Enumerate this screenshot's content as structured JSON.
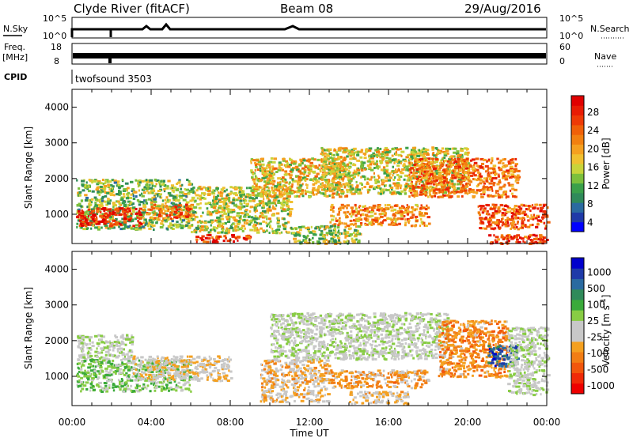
{
  "header": {
    "station": "Clyde River (fitACF)",
    "beam": "Beam 08",
    "date": "29/Aug/2016"
  },
  "aux_panels": {
    "nsky_label": "N.Sky",
    "nsky_ticks": [
      "10^5",
      "10^0"
    ],
    "nsearch_label": "N.Search",
    "nsearch_ticks": [
      "10^5",
      "10^0"
    ],
    "freq_label_1": "Freq.",
    "freq_label_2": "[MHz]",
    "freq_ticks": [
      "18",
      "8"
    ],
    "nave_label": "Nave",
    "nave_ticks": [
      "60",
      "0"
    ],
    "cpid_label": "CPID",
    "cpid_value": "twofsound 3503"
  },
  "chart_data": [
    {
      "type": "heatmap",
      "panel": "power",
      "ylabel": "Slant Range [km]",
      "xlabel": "",
      "ylim": [
        180,
        4500
      ],
      "xlim_hours": [
        0,
        24
      ],
      "x_ticks": [
        "00:00",
        "04:00",
        "08:00",
        "12:00",
        "16:00",
        "20:00",
        "00:00"
      ],
      "y_ticks": [
        1000,
        2000,
        3000,
        4000
      ],
      "colorbar": {
        "label": "Power [dB]",
        "ticks": [
          "28",
          "24",
          "20",
          "16",
          "12",
          "8",
          "4"
        ],
        "range": [
          0,
          30
        ],
        "colors": [
          "#0000ff",
          "#1f3aa8",
          "#2a6aa0",
          "#2f8a5a",
          "#3aa04a",
          "#7cc03c",
          "#c8d43a",
          "#f0c030",
          "#f5a020",
          "#f28010",
          "#f06008",
          "#ee3a06",
          "#e81c04",
          "#e00000"
        ]
      },
      "echo_regions": [
        {
          "t0": 0.2,
          "t1": 6.0,
          "r0": 600,
          "r1": 2000,
          "power": 12
        },
        {
          "t0": 0.2,
          "t1": 3.5,
          "r0": 700,
          "r1": 1200,
          "power": 27
        },
        {
          "t0": 3.5,
          "t1": 6.0,
          "r0": 900,
          "r1": 1300,
          "power": 22
        },
        {
          "t0": 6.0,
          "t1": 11.0,
          "r0": 500,
          "r1": 1800,
          "power": 14
        },
        {
          "t0": 6.2,
          "t1": 9.0,
          "r0": 250,
          "r1": 450,
          "power": 25
        },
        {
          "t0": 9.0,
          "t1": 14.0,
          "r0": 1500,
          "r1": 2600,
          "power": 16
        },
        {
          "t0": 12.5,
          "t1": 20.0,
          "r0": 1600,
          "r1": 2900,
          "power": 15
        },
        {
          "t0": 13.0,
          "t1": 18.0,
          "r0": 700,
          "r1": 1300,
          "power": 20
        },
        {
          "t0": 17.0,
          "t1": 22.5,
          "r0": 1500,
          "r1": 2600,
          "power": 21
        },
        {
          "t0": 20.5,
          "t1": 24.0,
          "r0": 600,
          "r1": 1300,
          "power": 23
        },
        {
          "t0": 11.0,
          "t1": 14.5,
          "r0": 200,
          "r1": 700,
          "power": 13
        },
        {
          "t0": 21.0,
          "t1": 24.0,
          "r0": 200,
          "r1": 450,
          "power": 25
        }
      ]
    },
    {
      "type": "heatmap",
      "panel": "velocity",
      "ylabel": "Slant Range [km]",
      "xlabel": "Time UT",
      "ylim": [
        180,
        4500
      ],
      "xlim_hours": [
        0,
        24
      ],
      "x_ticks": [
        "00:00",
        "04:00",
        "08:00",
        "12:00",
        "16:00",
        "20:00",
        "00:00"
      ],
      "y_ticks": [
        1000,
        2000,
        3000,
        4000
      ],
      "colorbar": {
        "label": "Velocity [m s^-1]",
        "ticks": [
          "1000",
          "500",
          "100",
          "25",
          "-25",
          "-100",
          "-500",
          "-1000"
        ],
        "range": [
          -1200,
          1200
        ],
        "colors": [
          "#ee0000",
          "#f02a08",
          "#f2560c",
          "#f27d14",
          "#f4a020",
          "#c8c8c8",
          "#c8c8c8",
          "#88cc44",
          "#3aaa3a",
          "#2f8a5a",
          "#2a6aa0",
          "#1e3aa8",
          "#0000cc"
        ]
      },
      "echo_regions": [
        {
          "t0": 0.2,
          "t1": 3.0,
          "r0": 1500,
          "r1": 2200,
          "vel": 0
        },
        {
          "t0": 0.2,
          "t1": 6.0,
          "r0": 600,
          "r1": 1500,
          "vel": 200
        },
        {
          "t0": 3.0,
          "t1": 8.0,
          "r0": 900,
          "r1": 1600,
          "vel": -200
        },
        {
          "t0": 9.5,
          "t1": 13.0,
          "r0": 300,
          "r1": 1500,
          "vel": -300
        },
        {
          "t0": 10.0,
          "t1": 19.0,
          "r0": 1500,
          "r1": 2800,
          "vel": 0
        },
        {
          "t0": 13.0,
          "t1": 18.0,
          "r0": 700,
          "r1": 1200,
          "vel": -400
        },
        {
          "t0": 14.0,
          "t1": 17.0,
          "r0": 250,
          "r1": 600,
          "vel": -250
        },
        {
          "t0": 18.5,
          "t1": 22.0,
          "r0": 1000,
          "r1": 2600,
          "vel": -500
        },
        {
          "t0": 21.0,
          "t1": 22.5,
          "r0": 1300,
          "r1": 1900,
          "vel": 800
        },
        {
          "t0": 22.0,
          "t1": 24.0,
          "r0": 500,
          "r1": 2400,
          "vel": 0
        }
      ]
    }
  ]
}
